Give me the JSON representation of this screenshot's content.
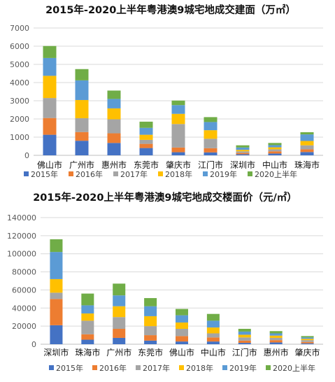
{
  "chart_data": [
    {
      "type": "bar",
      "stacked": true,
      "title": "2015年-2020上半年粤港澳9城宅地成交建面（万㎡）",
      "xlabel": "",
      "ylabel": "",
      "ylim": [
        0,
        7000
      ],
      "yticks": [
        "0",
        "1000",
        "2000",
        "3000",
        "4000",
        "5000",
        "6000",
        "7000"
      ],
      "grid": true,
      "legend": "bottom",
      "categories": [
        "佛山市",
        "广州市",
        "惠州市",
        "东莞市",
        "肇庆市",
        "江门市",
        "深圳市",
        "中山市",
        "珠海市"
      ],
      "series": [
        {
          "name": "2015年",
          "color": "#4472C4",
          "values": [
            1130,
            800,
            680,
            400,
            170,
            160,
            60,
            100,
            180
          ]
        },
        {
          "name": "2016年",
          "color": "#ED7D31",
          "values": [
            920,
            480,
            530,
            230,
            260,
            230,
            70,
            120,
            150
          ]
        },
        {
          "name": "2017年",
          "color": "#A5A5A5",
          "values": [
            1100,
            760,
            770,
            220,
            1290,
            520,
            90,
            110,
            220
          ]
        },
        {
          "name": "2018年",
          "color": "#FFC000",
          "values": [
            1220,
            1000,
            600,
            280,
            560,
            470,
            80,
            110,
            240
          ]
        },
        {
          "name": "2019年",
          "color": "#5B9BD5",
          "values": [
            980,
            1080,
            520,
            380,
            480,
            450,
            130,
            120,
            360
          ]
        },
        {
          "name": "2020上半年",
          "color": "#70AD47",
          "values": [
            660,
            620,
            460,
            340,
            250,
            270,
            120,
            120,
            120
          ]
        }
      ]
    },
    {
      "type": "bar",
      "stacked": true,
      "title": "2015年-2020上半年粤港澳9城宅地成交楼面价（元/㎡）",
      "xlabel": "",
      "ylabel": "",
      "ylim": [
        0,
        140000
      ],
      "yticks": [
        "0",
        "20000",
        "40000",
        "60000",
        "80000",
        "100000",
        "120000",
        "140000"
      ],
      "grid": true,
      "legend": "bottom",
      "categories": [
        "深圳市",
        "珠海市",
        "广州市",
        "东莞市",
        "佛山市",
        "中山市",
        "江门市",
        "惠州市",
        "肇庆市"
      ],
      "series": [
        {
          "name": "2015年",
          "color": "#4472C4",
          "values": [
            21000,
            5000,
            7000,
            4000,
            3000,
            3000,
            1500,
            2000,
            1000
          ]
        },
        {
          "name": "2016年",
          "color": "#ED7D31",
          "values": [
            29000,
            6000,
            10000,
            6000,
            6000,
            4500,
            2500,
            2500,
            1500
          ]
        },
        {
          "name": "2017年",
          "color": "#A5A5A5",
          "values": [
            7000,
            15000,
            13000,
            10000,
            8000,
            4500,
            3500,
            2500,
            2000
          ]
        },
        {
          "name": "2018年",
          "color": "#FFC000",
          "values": [
            15000,
            8000,
            12000,
            11000,
            7000,
            6500,
            3000,
            2500,
            1500
          ]
        },
        {
          "name": "2019年",
          "color": "#5B9BD5",
          "values": [
            30000,
            9000,
            12000,
            11000,
            8000,
            7500,
            3500,
            2500,
            1500
          ]
        },
        {
          "name": "2020上半年",
          "color": "#70AD47",
          "values": [
            14000,
            13000,
            13000,
            9000,
            7000,
            7500,
            3000,
            2500,
            1500
          ]
        }
      ]
    }
  ]
}
